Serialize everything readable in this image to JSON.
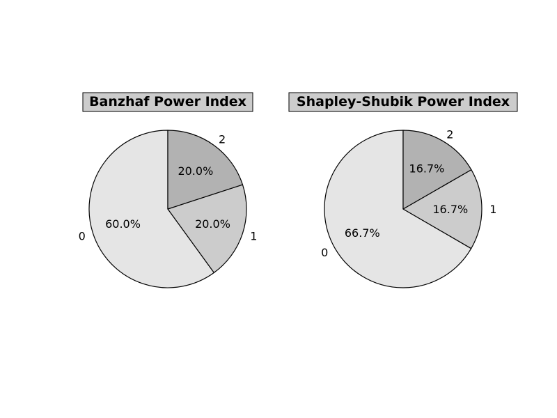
{
  "chart_data": [
    {
      "type": "pie",
      "title": "Banzhaf Power Index",
      "labels": [
        "0",
        "1",
        "2"
      ],
      "values": [
        60.0,
        20.0,
        20.0
      ],
      "value_labels": [
        "60.0%",
        "20.0%",
        "20.0%"
      ],
      "colors": [
        "#e5e5e5",
        "#cccccc",
        "#b2b2b2"
      ],
      "start_angle_deg": 90,
      "direction": "clockwise-from-top-counterclockwise-fill",
      "title_box_color": "#cccccc"
    },
    {
      "type": "pie",
      "title": "Shapley-Shubik Power Index",
      "labels": [
        "0",
        "1",
        "2"
      ],
      "values": [
        66.7,
        16.7,
        16.7
      ],
      "value_labels": [
        "66.7%",
        "16.7%",
        "16.7%"
      ],
      "colors": [
        "#e5e5e5",
        "#cccccc",
        "#b2b2b2"
      ],
      "start_angle_deg": 90,
      "direction": "clockwise-from-top-counterclockwise-fill",
      "title_box_color": "#cccccc"
    }
  ]
}
